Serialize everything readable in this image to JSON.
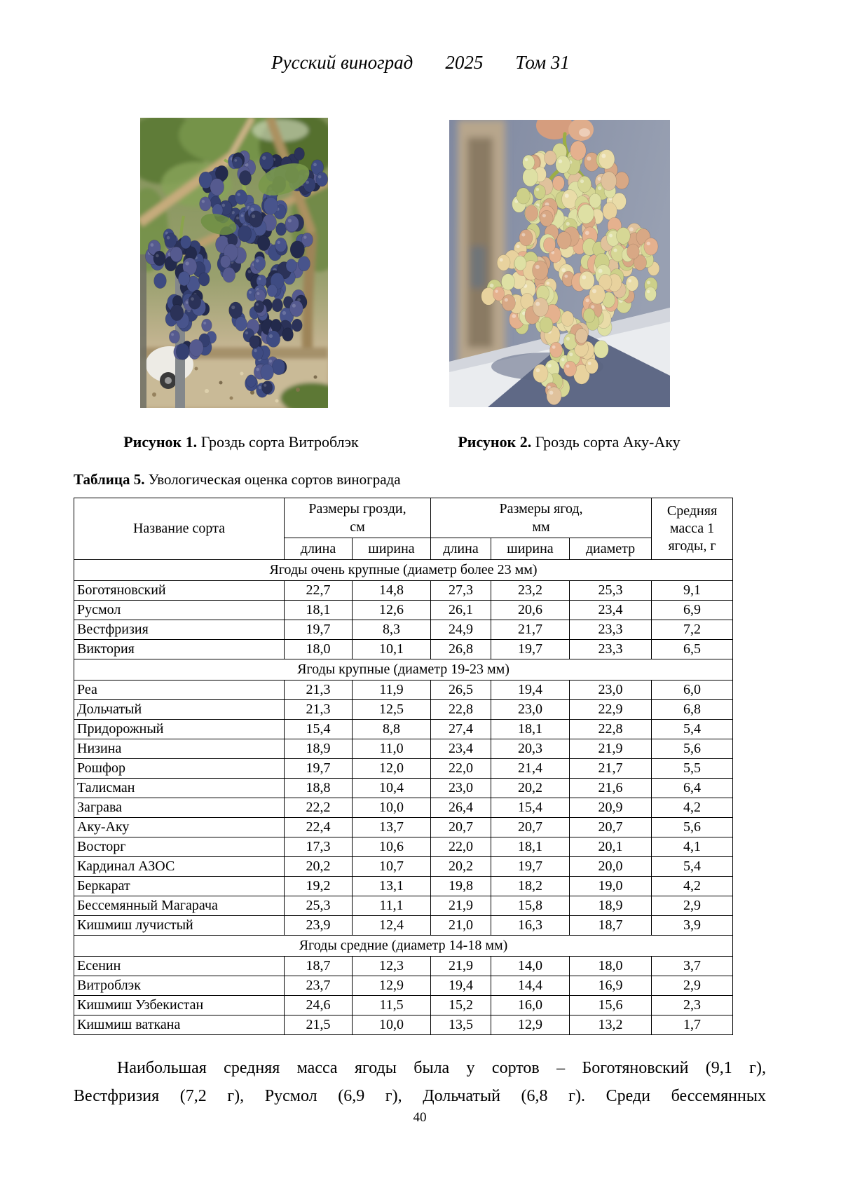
{
  "header": {
    "journal_title": "Русский виноград",
    "year": "2025",
    "volume": "Том 31"
  },
  "figures": [
    {
      "label": "Рисунок 1.",
      "caption": " Гроздь сорта Витроблэк"
    },
    {
      "label": "Рисунок 2.",
      "caption": " Гроздь сорта Аку-Аку"
    }
  ],
  "table": {
    "label": "Таблица 5.",
    "title": " Увологическая оценка сортов винограда",
    "header": {
      "variety": "Название сорта",
      "cluster_size_group": "Размеры грозди,\nсм",
      "berry_size_group": "Размеры ягод,\nмм",
      "avg_mass": "Средняя масса 1 ягоды, г",
      "sub": [
        "длина",
        "ширина",
        "длина",
        "ширина",
        "диаметр"
      ]
    },
    "sections": [
      {
        "title": "Ягоды очень крупные (диаметр более 23 мм)",
        "rows": [
          {
            "name": "Боготяновский",
            "values": [
              "22,7",
              "14,8",
              "27,3",
              "23,2",
              "25,3",
              "9,1"
            ]
          },
          {
            "name": "Русмол",
            "values": [
              "18,1",
              "12,6",
              "26,1",
              "20,6",
              "23,4",
              "6,9"
            ]
          },
          {
            "name": "Вестфризия",
            "values": [
              "19,7",
              "8,3",
              "24,9",
              "21,7",
              "23,3",
              "7,2"
            ]
          },
          {
            "name": "Виктория",
            "values": [
              "18,0",
              "10,1",
              "26,8",
              "19,7",
              "23,3",
              "6,5"
            ]
          }
        ]
      },
      {
        "title": "Ягоды крупные (диаметр 19-23 мм)",
        "rows": [
          {
            "name": "Реа",
            "values": [
              "21,3",
              "11,9",
              "26,5",
              "19,4",
              "23,0",
              "6,0"
            ]
          },
          {
            "name": "Дольчатый",
            "values": [
              "21,3",
              "12,5",
              "22,8",
              "23,0",
              "22,9",
              "6,8"
            ]
          },
          {
            "name": "Придорожный",
            "values": [
              "15,4",
              "8,8",
              "27,4",
              "18,1",
              "22,8",
              "5,4"
            ]
          },
          {
            "name": "Низина",
            "values": [
              "18,9",
              "11,0",
              "23,4",
              "20,3",
              "21,9",
              "5,6"
            ]
          },
          {
            "name": "Рошфор",
            "values": [
              "19,7",
              "12,0",
              "22,0",
              "21,4",
              "21,7",
              "5,5"
            ]
          },
          {
            "name": "Талисман",
            "values": [
              "18,8",
              "10,4",
              "23,0",
              "20,2",
              "21,6",
              "6,4"
            ]
          },
          {
            "name": "Заграва",
            "values": [
              "22,2",
              "10,0",
              "26,4",
              "15,4",
              "20,9",
              "4,2"
            ]
          },
          {
            "name": "Аку-Аку",
            "values": [
              "22,4",
              "13,7",
              "20,7",
              "20,7",
              "20,7",
              "5,6"
            ]
          },
          {
            "name": "Восторг",
            "values": [
              "17,3",
              "10,6",
              "22,0",
              "18,1",
              "20,1",
              "4,1"
            ]
          },
          {
            "name": "Кардинал АЗОС",
            "values": [
              "20,2",
              "10,7",
              "20,2",
              "19,7",
              "20,0",
              "5,4"
            ]
          },
          {
            "name": "Беркарат",
            "values": [
              "19,2",
              "13,1",
              "19,8",
              "18,2",
              "19,0",
              "4,2"
            ]
          },
          {
            "name": "Бессемянный Магарача",
            "values": [
              "25,3",
              "11,1",
              "21,9",
              "15,8",
              "18,9",
              "2,9"
            ]
          },
          {
            "name": "Кишмиш лучистый",
            "values": [
              "23,9",
              "12,4",
              "21,0",
              "16,3",
              "18,7",
              "3,9"
            ]
          }
        ]
      },
      {
        "title": "Ягоды средние (диаметр 14-18 мм)",
        "rows": [
          {
            "name": "Есенин",
            "values": [
              "18,7",
              "12,3",
              "21,9",
              "14,0",
              "18,0",
              "3,7"
            ]
          },
          {
            "name": "Витроблэк",
            "values": [
              "23,7",
              "12,9",
              "19,4",
              "14,4",
              "16,9",
              "2,9"
            ]
          },
          {
            "name": "Кишмиш Узбекистан",
            "values": [
              "24,6",
              "11,5",
              "15,2",
              "16,0",
              "15,6",
              "2,3"
            ]
          },
          {
            "name": "Кишмиш ваткана",
            "values": [
              "21,5",
              "10,0",
              "13,5",
              "12,9",
              "13,2",
              "1,7"
            ]
          }
        ]
      }
    ]
  },
  "body_paragraph": {
    "line1": "Наибольшая средняя масса ягоды была у сортов – Боготяновский (9,1 г),",
    "line2": "Вестфризия (7,2 г), Русмол (6,9 г), Дольчатый (6,8 г). Среди бессемянных"
  },
  "page_number": "40",
  "colors": {
    "text": "#000000",
    "table_border": "#000000",
    "grape_dark_blue": "#343f70",
    "grape_yellow_green": "#d6d795",
    "grape_pink_blush": "#e5b18e"
  }
}
